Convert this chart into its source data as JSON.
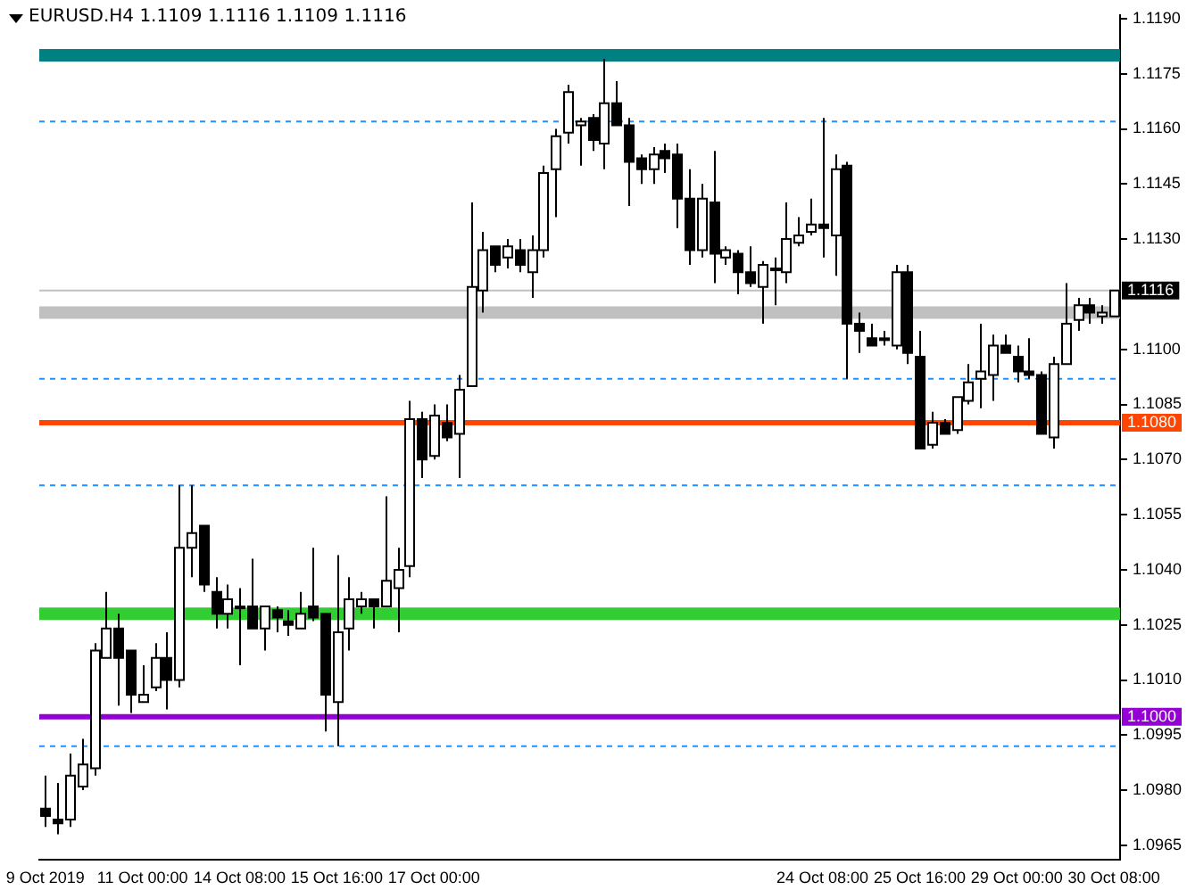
{
  "chart_data": {
    "type": "candlestick",
    "title": "EURUSD.H4 1.1109 1.1116 1.1109 1.1116",
    "categories": [
      "9 Oct 2019",
      null,
      null,
      null,
      null,
      null,
      null,
      null,
      "11 Oct 00:00",
      null,
      null,
      null,
      null,
      null,
      null,
      null,
      "14 Oct 08:00",
      null,
      null,
      null,
      null,
      null,
      null,
      null,
      "15 Oct 16:00",
      null,
      null,
      null,
      null,
      null,
      null,
      null,
      "17 Oct 00:00",
      null,
      null,
      null,
      null,
      null,
      null,
      null,
      null,
      null,
      null,
      null,
      null,
      null,
      null,
      null,
      null,
      null,
      null,
      null,
      null,
      null,
      null,
      null,
      null,
      null,
      null,
      null,
      null,
      null,
      null,
      null,
      "24 Oct 08:00",
      null,
      null,
      null,
      null,
      null,
      null,
      null,
      "25 Oct 16:00",
      null,
      null,
      null,
      null,
      null,
      null,
      null,
      "29 Oct 00:00",
      null,
      null,
      null,
      null,
      null,
      null,
      null,
      "30 Oct 08:00"
    ],
    "ohlc": [
      [
        1.0975,
        1.0984,
        1.097,
        1.0973
      ],
      [
        1.0972,
        1.0982,
        1.0968,
        1.0971
      ],
      [
        1.0972,
        1.099,
        1.097,
        1.0984
      ],
      [
        1.0981,
        1.0994,
        1.098,
        1.0987
      ],
      [
        1.0986,
        1.102,
        1.0984,
        1.1018
      ],
      [
        1.1016,
        1.1034,
        1.1016,
        1.1024
      ],
      [
        1.1024,
        1.1028,
        1.1003,
        1.1016
      ],
      [
        1.1018,
        1.1018,
        1.1001,
        1.1006
      ],
      [
        1.1004,
        1.1014,
        1.1004,
        1.1006
      ],
      [
        1.1008,
        1.102,
        1.1007,
        1.1016
      ],
      [
        1.1016,
        1.1023,
        1.1002,
        1.101
      ],
      [
        1.101,
        1.1063,
        1.1008,
        1.1046
      ],
      [
        1.1046,
        1.1063,
        1.1038,
        1.105
      ],
      [
        1.1052,
        1.1052,
        1.1034,
        1.1036
      ],
      [
        1.1034,
        1.1038,
        1.1024,
        1.1028
      ],
      [
        1.1028,
        1.1036,
        1.1024,
        1.1032
      ],
      [
        1.103,
        1.1035,
        1.1014,
        1.103
      ],
      [
        1.103,
        1.1043,
        1.1024,
        1.1024
      ],
      [
        1.1024,
        1.103,
        1.1018,
        1.103
      ],
      [
        1.1029,
        1.103,
        1.1023,
        1.1027
      ],
      [
        1.1026,
        1.1029,
        1.1022,
        1.1025
      ],
      [
        1.1024,
        1.1034,
        1.1024,
        1.1028
      ],
      [
        1.103,
        1.1046,
        1.1026,
        1.1027
      ],
      [
        1.1028,
        1.1028,
        1.0996,
        1.1006
      ],
      [
        1.1004,
        1.1044,
        1.0992,
        1.1023
      ],
      [
        1.1024,
        1.1038,
        1.1018,
        1.1032
      ],
      [
        1.103,
        1.1034,
        1.1028,
        1.1032
      ],
      [
        1.1032,
        1.1032,
        1.1024,
        1.103
      ],
      [
        1.103,
        1.106,
        1.103,
        1.1037
      ],
      [
        1.1035,
        1.1046,
        1.1023,
        1.104
      ],
      [
        1.1041,
        1.1086,
        1.1038,
        1.1081
      ],
      [
        1.1081,
        1.1083,
        1.1065,
        1.107
      ],
      [
        1.1071,
        1.1085,
        1.107,
        1.1082
      ],
      [
        1.108,
        1.1085,
        1.1075,
        1.1076
      ],
      [
        1.1077,
        1.1093,
        1.1065,
        1.1089
      ],
      [
        1.109,
        1.114,
        1.109,
        1.1117
      ],
      [
        1.1116,
        1.1132,
        1.111,
        1.1127
      ],
      [
        1.1128,
        1.1128,
        1.1121,
        1.1123
      ],
      [
        1.1125,
        1.113,
        1.1122,
        1.1128
      ],
      [
        1.1127,
        1.113,
        1.1121,
        1.1123
      ],
      [
        1.1121,
        1.1131,
        1.1114,
        1.1127
      ],
      [
        1.1127,
        1.115,
        1.1125,
        1.1148
      ],
      [
        1.1149,
        1.116,
        1.1136,
        1.1158
      ],
      [
        1.1159,
        1.1172,
        1.1156,
        1.117
      ],
      [
        1.1161,
        1.1163,
        1.115,
        1.1162
      ],
      [
        1.1163,
        1.1164,
        1.1154,
        1.1157
      ],
      [
        1.1156,
        1.1179,
        1.1149,
        1.1167
      ],
      [
        1.1167,
        1.1173,
        1.1161,
        1.1161
      ],
      [
        1.1161,
        1.1163,
        1.1139,
        1.1151
      ],
      [
        1.1152,
        1.1153,
        1.1145,
        1.1149
      ],
      [
        1.1149,
        1.1155,
        1.1145,
        1.1153
      ],
      [
        1.1154,
        1.1156,
        1.1148,
        1.1152
      ],
      [
        1.1153,
        1.1156,
        1.1133,
        1.1141
      ],
      [
        1.1141,
        1.1149,
        1.1123,
        1.1127
      ],
      [
        1.1127,
        1.1145,
        1.1125,
        1.1141
      ],
      [
        1.114,
        1.1154,
        1.1118,
        1.1126
      ],
      [
        1.1125,
        1.1128,
        1.1123,
        1.1127
      ],
      [
        1.1126,
        1.1127,
        1.1115,
        1.1121
      ],
      [
        1.1121,
        1.1128,
        1.1117,
        1.1118
      ],
      [
        1.1117,
        1.1124,
        1.1107,
        1.1123
      ],
      [
        1.1122,
        1.1125,
        1.1112,
        1.1122
      ],
      [
        1.1121,
        1.114,
        1.1118,
        1.113
      ],
      [
        1.1129,
        1.1136,
        1.1128,
        1.1131
      ],
      [
        1.1132,
        1.1141,
        1.1131,
        1.1134
      ],
      [
        1.1134,
        1.1163,
        1.1125,
        1.1133
      ],
      [
        1.1131,
        1.1153,
        1.112,
        1.1149
      ],
      [
        1.115,
        1.1151,
        1.1092,
        1.1107
      ],
      [
        1.1107,
        1.111,
        1.1099,
        1.1105
      ],
      [
        1.1103,
        1.1107,
        1.1101,
        1.1101
      ],
      [
        1.1103,
        1.1105,
        1.1101,
        1.1103
      ],
      [
        1.1101,
        1.1123,
        1.11,
        1.1121
      ],
      [
        1.1121,
        1.1123,
        1.1096,
        1.1099
      ],
      [
        1.1098,
        1.1105,
        1.1073,
        1.1073
      ],
      [
        1.1074,
        1.1083,
        1.1073,
        1.108
      ],
      [
        1.108,
        1.1081,
        1.1077,
        1.1077
      ],
      [
        1.1078,
        1.1087,
        1.1077,
        1.1087
      ],
      [
        1.1086,
        1.1096,
        1.1085,
        1.1091
      ],
      [
        1.1092,
        1.1107,
        1.1084,
        1.1094
      ],
      [
        1.1093,
        1.1104,
        1.1086,
        1.1101
      ],
      [
        1.1101,
        1.1104,
        1.1099,
        1.1099
      ],
      [
        1.1098,
        1.1101,
        1.1091,
        1.1094
      ],
      [
        1.1094,
        1.1103,
        1.1092,
        1.1093
      ],
      [
        1.1093,
        1.1094,
        1.1077,
        1.1077
      ],
      [
        1.1076,
        1.1098,
        1.1073,
        1.1096
      ],
      [
        1.1096,
        1.1118,
        1.1096,
        1.1107
      ],
      [
        1.1108,
        1.1114,
        1.1105,
        1.1112
      ],
      [
        1.1112,
        1.1114,
        1.1107,
        1.111
      ],
      [
        1.1109,
        1.1112,
        1.1107,
        1.111
      ],
      [
        1.1109,
        1.1116,
        1.1109,
        1.1116
      ]
    ],
    "ylim": [
      1.0961,
      1.1191
    ],
    "yticks": [
      {
        "value": 1.119,
        "label": "1.1190"
      },
      1.1175,
      {
        "value": 1.116,
        "label": "1.1160"
      },
      1.1145,
      {
        "value": 1.113,
        "label": "1.1130"
      },
      {
        "value": 1.11,
        "label": "1.1100"
      },
      1.1085,
      {
        "value": 1.107,
        "label": "1.1070"
      },
      1.1055,
      {
        "value": 1.104,
        "label": "1.1040"
      },
      1.1025,
      {
        "value": 1.101,
        "label": "1.1010"
      },
      1.0995,
      {
        "value": 1.098,
        "label": "1.0980"
      },
      1.0965
    ],
    "ref_lines": [
      {
        "axis": "y",
        "value": 1.118,
        "color": "#008080",
        "line_style": "solid"
      },
      {
        "axis": "y",
        "value": 1.1162,
        "color": "#1e90ff",
        "line_style": "dashed"
      },
      {
        "axis": "y",
        "value": 1.1116,
        "label": "1.1116",
        "color": "#c0c0c0",
        "line_style": "solid"
      },
      {
        "axis": "y",
        "value": 1.111,
        "color": "#c0c0c0",
        "line_style": "solid"
      },
      {
        "axis": "y",
        "value": 1.1092,
        "color": "#1e90ff",
        "line_style": "dashed"
      },
      {
        "axis": "y",
        "value": 1.108,
        "label": "1.1080",
        "color": "#ff4500",
        "line_style": "solid"
      },
      {
        "axis": "y",
        "value": 1.1063,
        "color": "#1e90ff",
        "line_style": "dashed"
      },
      {
        "axis": "y",
        "value": 1.1028,
        "color": "#32cd32",
        "line_style": "solid"
      },
      {
        "axis": "y",
        "value": 1.1,
        "label": "1.1000",
        "color": "#9400d3",
        "line_style": "solid"
      },
      {
        "axis": "y",
        "value": 1.0992,
        "color": "#1e90ff",
        "line_style": "dashed"
      }
    ],
    "grid": false,
    "legend": false
  }
}
